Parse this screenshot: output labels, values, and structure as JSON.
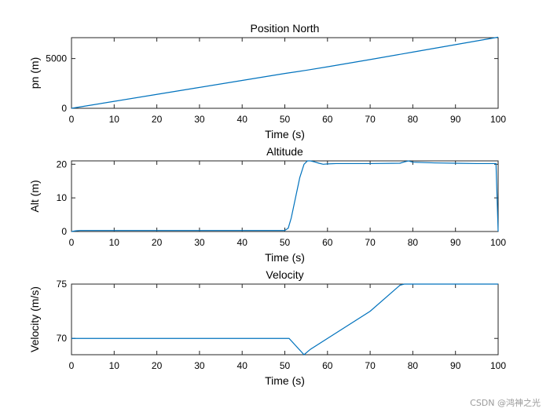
{
  "watermark": "CSDN @鸿神之光",
  "chart_data": [
    {
      "type": "line",
      "title": "Position North",
      "xlabel": "Time (s)",
      "ylabel": "pn (m)",
      "xlim": [
        0,
        100
      ],
      "ylim": [
        0,
        7100
      ],
      "xticks": [
        0,
        10,
        20,
        30,
        40,
        50,
        60,
        70,
        80,
        90,
        100
      ],
      "yticks": [
        0,
        5000
      ],
      "line_color": "#0072bd",
      "series": [
        {
          "x": [
            0,
            10,
            20,
            30,
            40,
            50,
            55,
            60,
            70,
            80,
            90,
            100
          ],
          "y": [
            0,
            700,
            1400,
            2100,
            2800,
            3500,
            3820,
            4170,
            4900,
            5650,
            6400,
            7150
          ]
        }
      ]
    },
    {
      "type": "line",
      "title": "Altitude",
      "xlabel": "Time (s)",
      "ylabel": "Alt (m)",
      "xlim": [
        0,
        100
      ],
      "ylim": [
        0,
        21
      ],
      "xticks": [
        0,
        10,
        20,
        30,
        40,
        50,
        60,
        70,
        80,
        90,
        100
      ],
      "yticks": [
        0,
        10,
        20
      ],
      "line_color": "#0072bd",
      "series": [
        {
          "x": [
            0,
            1,
            2,
            50,
            50.8,
            51.5,
            52.5,
            53.5,
            54.5,
            55.3,
            56,
            57,
            58,
            59,
            60,
            62,
            70,
            77,
            78,
            79,
            80,
            85,
            90,
            95,
            99.5,
            100
          ],
          "y": [
            0,
            0.2,
            0.3,
            0.3,
            1,
            4,
            10,
            16,
            20,
            21,
            21,
            20.7,
            20.3,
            20,
            20.1,
            20.2,
            20.2,
            20.3,
            20.7,
            21,
            20.6,
            20.4,
            20.3,
            20.2,
            20.2,
            0
          ]
        }
      ]
    },
    {
      "type": "line",
      "title": "Velocity",
      "xlabel": "Time (s)",
      "ylabel": "Velocity (m/s)",
      "xlim": [
        0,
        100
      ],
      "ylim": [
        68.5,
        75
      ],
      "xticks": [
        0,
        10,
        20,
        30,
        40,
        50,
        60,
        70,
        80,
        90,
        100
      ],
      "yticks": [
        70,
        75
      ],
      "line_color": "#0072bd",
      "series": [
        {
          "x": [
            0,
            50,
            51,
            54.5,
            56,
            60,
            70,
            77,
            78,
            100
          ],
          "y": [
            70,
            70,
            70,
            68.5,
            69,
            70,
            72.5,
            74.9,
            75,
            75
          ]
        }
      ]
    }
  ]
}
